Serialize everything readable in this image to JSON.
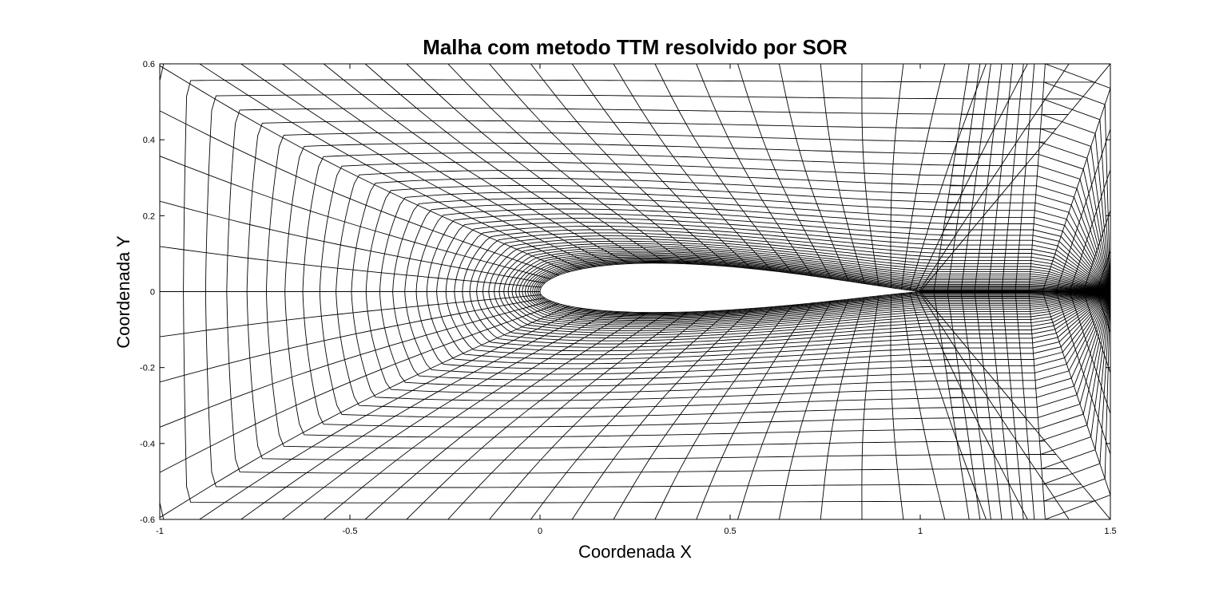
{
  "chart_data": {
    "type": "line",
    "title": "Malha com metodo TTM resolvido por SOR",
    "xlabel": "Coordenada X",
    "ylabel": "Coordenada Y",
    "xlim": [
      -1,
      1.5
    ],
    "ylim": [
      -0.6,
      0.6
    ],
    "xticks": [
      -1,
      -0.5,
      0,
      0.5,
      1,
      1.5
    ],
    "xtick_labels": [
      "-1",
      "-0.5",
      "0",
      "0.5",
      "1",
      "1.5"
    ],
    "yticks": [
      -0.6,
      -0.4,
      -0.2,
      0,
      0.2,
      0.4,
      0.6
    ],
    "ytick_labels": [
      "-0.6",
      "-0.4",
      "-0.2",
      "0",
      "0.2",
      "0.4",
      "0.6"
    ],
    "grid": false,
    "line_color": "#000000",
    "mesh": {
      "description_of_content": "Body-fitted structured C-grid around an airfoil",
      "airfoil_leading_edge": [
        0,
        0
      ],
      "airfoil_trailing_edge": [
        1,
        0
      ],
      "airfoil_max_thickness_top": 0.075,
      "airfoil_max_thickness_bottom": -0.055,
      "outer_boundary": {
        "front_x": -1,
        "back_x": 1.5,
        "top_y": 0.6,
        "bottom_y": -0.6
      },
      "n_radial_lines": 56,
      "n_wrap_lines": 40
    }
  }
}
